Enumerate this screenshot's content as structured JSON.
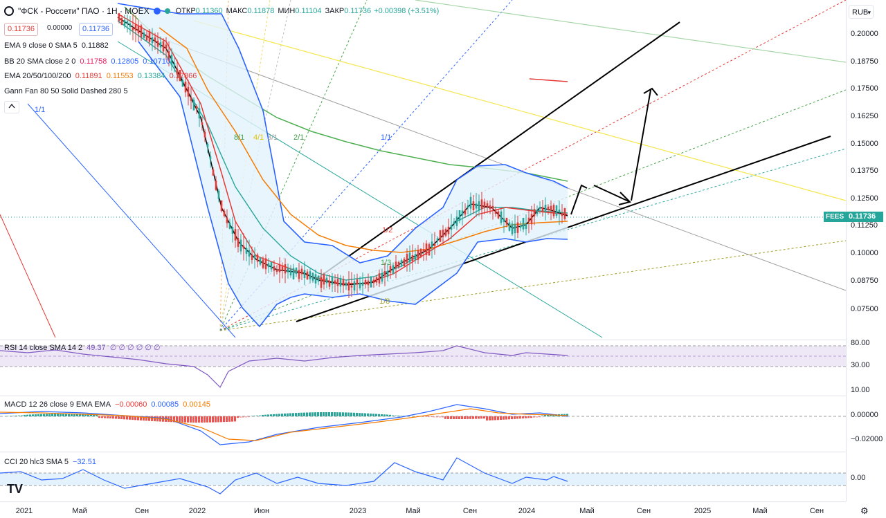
{
  "header": {
    "symbol": "\"ФСК - Россети\" ПАО · 1Н · MOEX",
    "open_label": "ОТКР",
    "open": "0.11360",
    "high_label": "МАКС",
    "high": "0.11878",
    "low_label": "МИН",
    "low": "0.11104",
    "close_label": "ЗАКР",
    "close": "0.11736",
    "change": "+0.00398 (+3.51%)",
    "bid": "0.11736",
    "spread": "0.00000",
    "ask": "0.11736",
    "currency": "RUB",
    "ticker_label": "FEES",
    "last_price": "0.11736",
    "collapse_icon": "chevron-up-icon",
    "logo": "TV"
  },
  "indicators": {
    "ema9": {
      "label": "EMA 9 close 0 SMA 5",
      "value": "0.11882",
      "color": "#000000"
    },
    "bb": {
      "label": "BB 20 SMA close 2 0",
      "v1": "0.11758",
      "v2": "0.12805",
      "v3": "0.10710",
      "c1": "#e91e63",
      "c2": "#2962ff",
      "c3": "#2962ff"
    },
    "ema_multi": {
      "label": "EMA 20/50/100/200",
      "v1": "0.11891",
      "v2": "0.11553",
      "v3": "0.13384",
      "v4": "0.17866",
      "c1": "#e53935",
      "c2": "#f57c00",
      "c3": "#26a69a",
      "c4": "#4caf50"
    },
    "gann": {
      "label": "Gann Fan 80 50 Solid Dashed 280 5"
    },
    "rsi": {
      "label": "RSI 14 close SMA 14 2",
      "value": "49.37",
      "extra": "∅ ∅ ∅ ∅ ∅ ∅"
    },
    "macd": {
      "label": "MACD 12 26 close 9 EMA EMA",
      "v1": "−0.00060",
      "v2": "0.00085",
      "v3": "0.00145"
    },
    "cci": {
      "label": "CCI 20 hlc3 SMA 5",
      "value": "−32.51"
    }
  },
  "gann_labels": [
    "8/1",
    "4/1",
    "3/1",
    "2/1",
    "1/1",
    "1/2",
    "1/3",
    "1/8"
  ],
  "gann_side_label": "1/1",
  "price_scale": [
    "0.20000",
    "0.18750",
    "0.17500",
    "0.16250",
    "0.15000",
    "0.13750",
    "0.12500",
    "0.11250",
    "0.10000",
    "0.08750",
    "0.07500"
  ],
  "rsi_scale": [
    "80.00",
    "30.00",
    "10.00"
  ],
  "macd_scale": [
    "0.00000",
    "−0.02000"
  ],
  "cci_scale": [
    "0.00"
  ],
  "time_axis": [
    "2021",
    "Май",
    "Сен",
    "2022",
    "Июн",
    "2023",
    "Май",
    "Сен",
    "2024",
    "Май",
    "Сен",
    "2025",
    "Май",
    "Сен"
  ],
  "colors": {
    "up": "#26a69a",
    "down": "#e53935",
    "bb": "#2962ff",
    "ema100": "#26a69a",
    "ema200": "#4caf50"
  }
}
